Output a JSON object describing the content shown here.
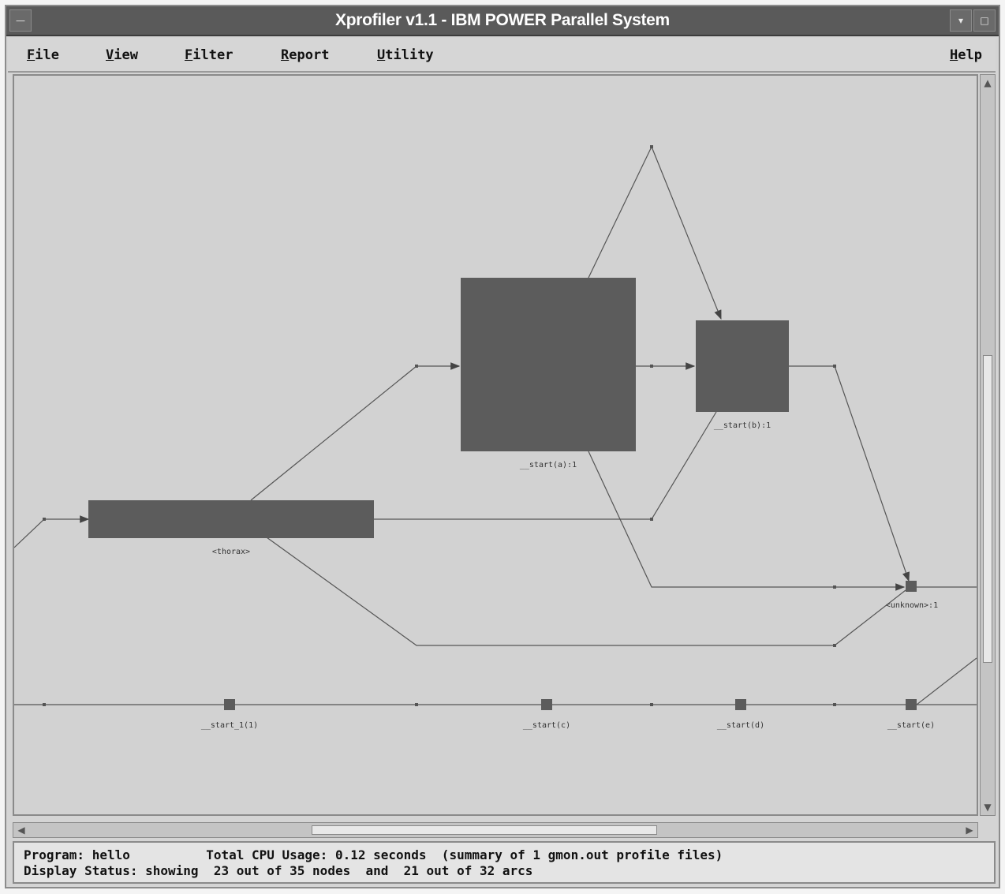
{
  "window": {
    "title": "Xprofiler v1.1 - IBM POWER Parallel System",
    "minimize_glyph": "▾",
    "maximize_glyph": "□",
    "menu_glyph": "—"
  },
  "menubar": {
    "file": {
      "first": "F",
      "rest": "ile"
    },
    "view": {
      "first": "V",
      "rest": "iew"
    },
    "filter": {
      "first": "F",
      "rest": "ilter"
    },
    "report": {
      "first": "R",
      "rest": "eport"
    },
    "utility": {
      "first": "U",
      "rest": "tility"
    },
    "help": {
      "first": "H",
      "rest": "elp"
    }
  },
  "graph": {
    "node_labels": {
      "main": "<thorax>",
      "big_block": "__start(a):1",
      "mid_block": "__start(b):1",
      "small_right": "<unknown>:1",
      "bottom_1": "__start_1(1)",
      "bottom_2": "__start(c)",
      "bottom_3": "__start(d)",
      "bottom_4": "__start(e)"
    }
  },
  "status": {
    "line1": "Program: hello          Total CPU Usage: 0.12 seconds  (summary of 1 gmon.out profile files)",
    "line2": "Display Status: showing  23 out of 35 nodes  and  21 out of 32 arcs"
  }
}
